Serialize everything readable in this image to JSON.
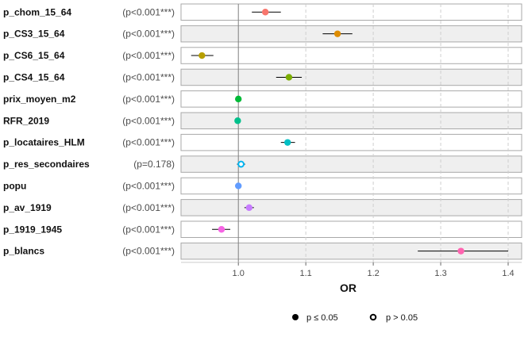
{
  "chart_data": {
    "type": "scatter",
    "xlabel": "OR",
    "xlim": [
      0.915,
      1.42
    ],
    "x_ticks": [
      1.0,
      1.1,
      1.2,
      1.3,
      1.4
    ],
    "x_tick_labels": [
      "1.0",
      "1.1",
      "1.2",
      "1.3",
      "1.4"
    ],
    "grid": true,
    "reference_line": 1.0,
    "legend_placement": "bottom",
    "rows": [
      {
        "label": "p_chom_15_64",
        "pval": "(p<0.001***)",
        "or": 1.04,
        "lo": 1.02,
        "hi": 1.063,
        "color": "#F8766D",
        "significant": true
      },
      {
        "label": "p_CS3_15_64",
        "pval": "(p<0.001***)",
        "or": 1.147,
        "lo": 1.125,
        "hi": 1.169,
        "color": "#DE8C00",
        "significant": true
      },
      {
        "label": "p_CS6_15_64",
        "pval": "(p<0.001***)",
        "or": 0.946,
        "lo": 0.93,
        "hi": 0.963,
        "color": "#B79F00",
        "significant": true
      },
      {
        "label": "p_CS4_15_64",
        "pval": "(p<0.001***)",
        "or": 1.075,
        "lo": 1.056,
        "hi": 1.094,
        "color": "#7CAE00",
        "significant": true
      },
      {
        "label": "prix_moyen_m2",
        "pval": "(p<0.001***)",
        "or": 1.0,
        "lo": 0.999,
        "hi": 1.001,
        "color": "#00BA38",
        "significant": true
      },
      {
        "label": "RFR_2019",
        "pval": "(p<0.001***)",
        "or": 0.999,
        "lo": 0.998,
        "hi": 1.0,
        "color": "#00C08B",
        "significant": true
      },
      {
        "label": "p_locataires_HLM",
        "pval": "(p<0.001***)",
        "or": 1.073,
        "lo": 1.063,
        "hi": 1.084,
        "color": "#00BFC4",
        "significant": true
      },
      {
        "label": "p_res_secondaires",
        "pval": "(p=0.178)",
        "or": 1.004,
        "lo": 0.998,
        "hi": 1.01,
        "color": "#00B4F0",
        "significant": false
      },
      {
        "label": "popu",
        "pval": "(p<0.001***)",
        "or": 1.0,
        "lo": 0.999,
        "hi": 1.001,
        "color": "#619CFF",
        "significant": true
      },
      {
        "label": "p_av_1919",
        "pval": "(p<0.001***)",
        "or": 1.016,
        "lo": 1.009,
        "hi": 1.023,
        "color": "#C77CFF",
        "significant": true
      },
      {
        "label": "p_1919_1945",
        "pval": "(p<0.001***)",
        "or": 0.975,
        "lo": 0.961,
        "hi": 0.988,
        "color": "#F564E3",
        "significant": true
      },
      {
        "label": "p_blancs",
        "pval": "(p<0.001***)",
        "or": 1.33,
        "lo": 1.266,
        "hi": 1.4,
        "color": "#FF64B0",
        "significant": true
      }
    ],
    "legend": [
      {
        "label": "p ≤ 0.05",
        "filled": true
      },
      {
        "label": "p > 0.05",
        "filled": false
      }
    ]
  }
}
